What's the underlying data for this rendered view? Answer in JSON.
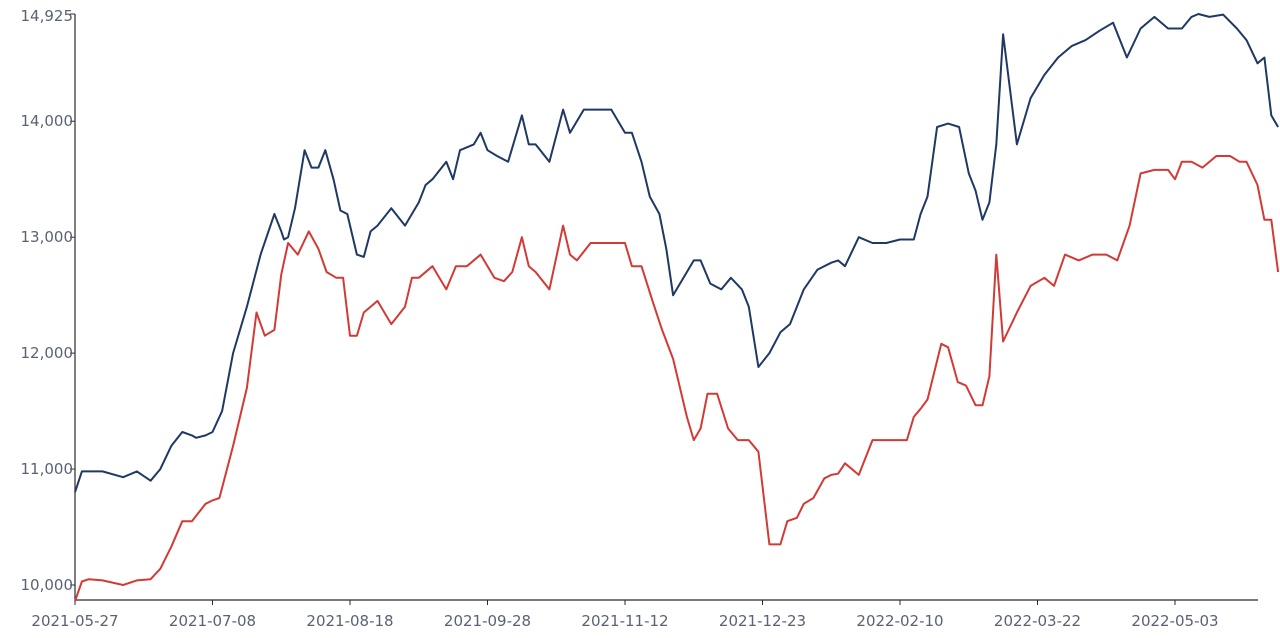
{
  "colors": {
    "series_1": "#1f3864",
    "series_2": "#d23a36",
    "axis": "#2b2b2b",
    "ticks": "#5a6275"
  },
  "chart_data": {
    "type": "line",
    "title": "",
    "xlabel": "",
    "ylabel": "",
    "ylim": [
      10000,
      14925
    ],
    "y_ticks": [
      10000,
      11000,
      12000,
      13000,
      14000,
      14925
    ],
    "y_tick_labels": [
      "10,000",
      "11,000",
      "12,000",
      "13,000",
      "14,000",
      "14,925"
    ],
    "x_tick_labels": [
      "2021-05-27",
      "2021-07-08",
      "2021-08-18",
      "2021-09-28",
      "2021-11-12",
      "2021-12-23",
      "2022-02-10",
      "2022-03-22",
      "2022-05-03"
    ],
    "x_tick_index": [
      0,
      1,
      2,
      3,
      4,
      5,
      6,
      7,
      8
    ],
    "x_range": [
      0,
      8.77
    ],
    "grid": false,
    "legend": "none",
    "series": [
      {
        "x": [
          0,
          0.05,
          0.1,
          0.2,
          0.35,
          0.45,
          0.55,
          0.62,
          0.7,
          0.78,
          0.85,
          0.88,
          0.95,
          1.0,
          1.07,
          1.15,
          1.25,
          1.35,
          1.45,
          1.5,
          1.52,
          1.55,
          1.6,
          1.67,
          1.72,
          1.77,
          1.82,
          1.88,
          1.93,
          1.98,
          2.05,
          2.1,
          2.15,
          2.2,
          2.3,
          2.4,
          2.45,
          2.5,
          2.55,
          2.6,
          2.7,
          2.75,
          2.8,
          2.9,
          2.95,
          3.0,
          3.07,
          3.15,
          3.25,
          3.3,
          3.35,
          3.45,
          3.55,
          3.6,
          3.7,
          3.8,
          3.9,
          4.0,
          4.05,
          4.12,
          4.18,
          4.25,
          4.3,
          4.35,
          4.45,
          4.5,
          4.55,
          4.62,
          4.7,
          4.77,
          4.85,
          4.9,
          4.97,
          5.05,
          5.13,
          5.2,
          5.3,
          5.4,
          5.5,
          5.55,
          5.6,
          5.7,
          5.8,
          5.9,
          6.0,
          6.05,
          6.1,
          6.15,
          6.2,
          6.27,
          6.35,
          6.43,
          6.5,
          6.55,
          6.6,
          6.65,
          6.7,
          6.75,
          6.85,
          6.95,
          7.05,
          7.15,
          7.25,
          7.35,
          7.45,
          7.55,
          7.65,
          7.75,
          7.85,
          7.95,
          8.05,
          8.12,
          8.17,
          8.25,
          8.35,
          8.45,
          8.52,
          8.6,
          8.65,
          8.7,
          8.75
        ],
        "values": [
          10800,
          10980,
          10980,
          10980,
          10930,
          10980,
          10900,
          11000,
          11200,
          11320,
          11290,
          11270,
          11290,
          11320,
          11500,
          12000,
          12400,
          12850,
          13200,
          13050,
          12980,
          13000,
          13250,
          13750,
          13600,
          13600,
          13750,
          13500,
          13230,
          13200,
          12850,
          12830,
          13050,
          13100,
          13250,
          13100,
          13200,
          13300,
          13450,
          13500,
          13650,
          13500,
          13750,
          13800,
          13900,
          13750,
          13700,
          13650,
          14050,
          13800,
          13800,
          13650,
          14100,
          13900,
          14100,
          14100,
          14100,
          13900,
          13900,
          13650,
          13350,
          13200,
          12900,
          12500,
          12700,
          12800,
          12800,
          12600,
          12550,
          12650,
          12550,
          12400,
          11880,
          12000,
          12180,
          12250,
          12550,
          12720,
          12780,
          12800,
          12750,
          13000,
          12950,
          12950,
          12980,
          12980,
          12980,
          13200,
          13350,
          13950,
          13980,
          13950,
          13550,
          13400,
          13150,
          13300,
          13800,
          14750,
          13800,
          14200,
          14400,
          14550,
          14650,
          14700,
          14780,
          14850,
          14550,
          14800,
          14900,
          14800,
          14800,
          14900,
          14925,
          14900,
          14920,
          14800,
          14700,
          14500,
          14550,
          14050,
          13950
        ]
      },
      {
        "x": [
          0,
          0.05,
          0.1,
          0.2,
          0.35,
          0.45,
          0.55,
          0.62,
          0.7,
          0.78,
          0.85,
          0.95,
          1.0,
          1.05,
          1.15,
          1.25,
          1.32,
          1.38,
          1.45,
          1.5,
          1.55,
          1.62,
          1.7,
          1.77,
          1.83,
          1.9,
          1.95,
          2.0,
          2.05,
          2.1,
          2.15,
          2.2,
          2.3,
          2.4,
          2.45,
          2.5,
          2.6,
          2.7,
          2.77,
          2.85,
          2.95,
          3.05,
          3.12,
          3.18,
          3.25,
          3.3,
          3.35,
          3.45,
          3.55,
          3.6,
          3.65,
          3.75,
          3.9,
          4.0,
          4.05,
          4.12,
          4.2,
          4.27,
          4.35,
          4.45,
          4.5,
          4.55,
          4.6,
          4.67,
          4.75,
          4.82,
          4.9,
          4.97,
          5.05,
          5.13,
          5.18,
          5.25,
          5.3,
          5.37,
          5.45,
          5.5,
          5.55,
          5.6,
          5.7,
          5.8,
          5.9,
          6.0,
          6.05,
          6.1,
          6.15,
          6.2,
          6.3,
          6.35,
          6.42,
          6.48,
          6.55,
          6.6,
          6.65,
          6.7,
          6.75,
          6.85,
          6.95,
          7.05,
          7.12,
          7.2,
          7.3,
          7.4,
          7.5,
          7.58,
          7.67,
          7.75,
          7.85,
          7.95,
          8.0,
          8.05,
          8.12,
          8.2,
          8.3,
          8.4,
          8.47,
          8.52,
          8.6,
          8.65,
          8.7,
          8.75
        ],
        "values": [
          9860,
          10030,
          10050,
          10040,
          10000,
          10040,
          10050,
          10140,
          10330,
          10550,
          10550,
          10700,
          10730,
          10750,
          11200,
          11700,
          12350,
          12150,
          12200,
          12680,
          12950,
          12850,
          13050,
          12900,
          12700,
          12650,
          12650,
          12150,
          12150,
          12350,
          12400,
          12450,
          12250,
          12400,
          12650,
          12650,
          12750,
          12550,
          12750,
          12750,
          12850,
          12650,
          12620,
          12700,
          13000,
          12750,
          12700,
          12550,
          13100,
          12850,
          12800,
          12950,
          12950,
          12950,
          12750,
          12750,
          12450,
          12200,
          11950,
          11450,
          11250,
          11350,
          11650,
          11650,
          11350,
          11250,
          11250,
          11150,
          10350,
          10350,
          10550,
          10580,
          10700,
          10750,
          10920,
          10950,
          10960,
          11050,
          10950,
          11250,
          11250,
          11250,
          11250,
          11450,
          11520,
          11600,
          12080,
          12050,
          11750,
          11720,
          11550,
          11550,
          11800,
          12850,
          12100,
          12350,
          12580,
          12650,
          12580,
          12850,
          12800,
          12850,
          12850,
          12800,
          13100,
          13550,
          13580,
          13580,
          13500,
          13650,
          13650,
          13600,
          13700,
          13700,
          13650,
          13650,
          13450,
          13150,
          13150,
          12700
        ]
      }
    ]
  }
}
